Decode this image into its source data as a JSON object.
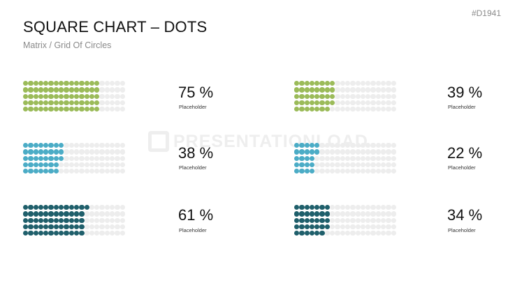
{
  "header": {
    "title": "SQUARE CHART – DOTS",
    "subtitle": "Matrix / Grid Of Circles",
    "code": "#D1941"
  },
  "watermark": {
    "text": "PRESENTATIONLOAD"
  },
  "colors": {
    "empty": "#ededed",
    "green": "#9bbb59",
    "blue": "#4bacc6",
    "teal": "#1f5f6b"
  },
  "chart_data": {
    "type": "waffle",
    "rows": 5,
    "columns": 20,
    "items": [
      {
        "value": 75,
        "label": "75 %",
        "caption": "Placeholder",
        "color": "#9bbb59"
      },
      {
        "value": 39,
        "label": "39 %",
        "caption": "Placeholder",
        "color": "#9bbb59"
      },
      {
        "value": 38,
        "label": "38 %",
        "caption": "Placeholder",
        "color": "#4bacc6"
      },
      {
        "value": 22,
        "label": "22 %",
        "caption": "Placeholder",
        "color": "#4bacc6"
      },
      {
        "value": 61,
        "label": "61 %",
        "caption": "Placeholder",
        "color": "#1f5f6b"
      },
      {
        "value": 34,
        "label": "34 %",
        "caption": "Placeholder",
        "color": "#1f5f6b"
      }
    ]
  }
}
